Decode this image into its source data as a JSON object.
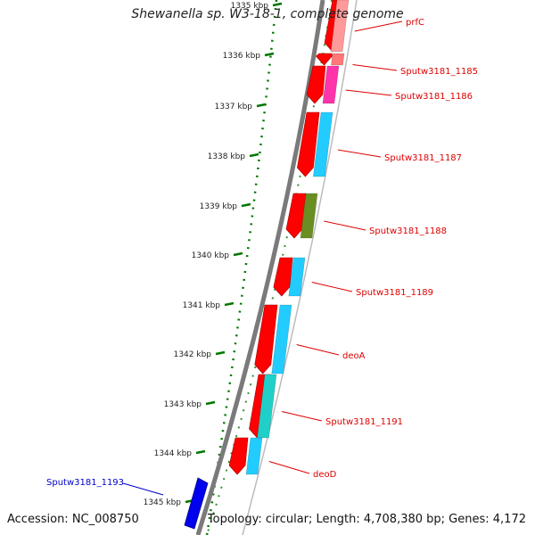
{
  "title": "Shewanella sp. W3-18-1, complete genome",
  "footer": {
    "accession": "Accession: NC_008750",
    "topology": "Topology: circular; Length: 4,708,380 bp; Genes: 4,172"
  },
  "ruler": {
    "ticks": [
      "1335 kbp",
      "1336 kbp",
      "1337 kbp",
      "1338 kbp",
      "1339 kbp",
      "1340 kbp",
      "1341 kbp",
      "1342 kbp",
      "1343 kbp",
      "1344 kbp",
      "1345 kbp"
    ]
  },
  "genes": [
    {
      "label": "prfC",
      "strand_color": "#ff9a9a",
      "partial": true
    },
    {
      "label": "Sputw3181_1185",
      "strand_color": "#ff7777"
    },
    {
      "label": "Sputw3181_1186",
      "strand_color": "#ff33aa"
    },
    {
      "label": "Sputw3181_1187",
      "strand_color": "#22ccff"
    },
    {
      "label": "Sputw3181_1188",
      "strand_color": "#6b8e23"
    },
    {
      "label": "Sputw3181_1189",
      "strand_color": "#22ccff"
    },
    {
      "label": "deoA",
      "strand_color": "#22ccff"
    },
    {
      "label": "Sputw3181_1191",
      "strand_color": "#20d0c8"
    },
    {
      "label": "deoD",
      "strand_color": "#22ccff"
    }
  ],
  "highlight_gene": {
    "label": "Sputw3181_1193",
    "color": "#0000ee"
  },
  "colors": {
    "label": "#dd0000",
    "link": "#0000cc",
    "cds": "#ff0000",
    "ruler": "#007700"
  }
}
